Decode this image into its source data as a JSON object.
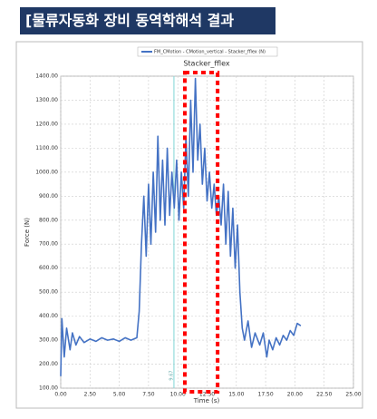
{
  "header": {
    "title": "[물류자동화 장비 동역학해석 결과"
  },
  "chart_data": {
    "type": "line",
    "title": "Stacker_fflex",
    "xlabel": "Time (s)",
    "ylabel": "Force (N)",
    "x": [
      0,
      0.1,
      0.3,
      0.5,
      0.8,
      1.0,
      1.3,
      1.6,
      2,
      2.5,
      3,
      3.5,
      4,
      4.5,
      5,
      5.5,
      6,
      6.5,
      6.7,
      6.9,
      7.1,
      7.3,
      7.5,
      7.7,
      7.9,
      8.1,
      8.3,
      8.5,
      8.7,
      8.9,
      9.1,
      9.3,
      9.5,
      9.7,
      9.9,
      10.1,
      10.3,
      10.5,
      10.7,
      10.9,
      11.1,
      11.3,
      11.5,
      11.7,
      11.9,
      12.1,
      12.3,
      12.5,
      12.7,
      12.9,
      13.1,
      13.3,
      13.5,
      13.7,
      13.9,
      14.1,
      14.3,
      14.5,
      14.7,
      14.9,
      15.1,
      15.3,
      15.5,
      15.7,
      16,
      16.3,
      16.6,
      17,
      17.3,
      17.6,
      17.8,
      18.1,
      18.4,
      18.7,
      19,
      19.3,
      19.6,
      19.9,
      20.2,
      20.5
    ],
    "series": [
      {
        "name": "FM_CMotion - CMotion_vertical - Stacker_fflex (N)",
        "color": "#4472c4",
        "values": [
          150,
          390,
          230,
          350,
          260,
          330,
          280,
          315,
          290,
          305,
          295,
          310,
          300,
          305,
          295,
          310,
          300,
          310,
          420,
          700,
          900,
          650,
          950,
          700,
          1000,
          750,
          1150,
          800,
          1050,
          780,
          1100,
          820,
          1000,
          850,
          1050,
          800,
          1000,
          850,
          1150,
          900,
          1300,
          1000,
          1390,
          1050,
          1200,
          950,
          1100,
          880,
          1000,
          850,
          950,
          820,
          900,
          780,
          950,
          700,
          920,
          650,
          850,
          600,
          780,
          500,
          350,
          300,
          380,
          270,
          330,
          280,
          330,
          230,
          300,
          260,
          310,
          280,
          320,
          300,
          340,
          320,
          370,
          360
        ]
      }
    ],
    "xlim": [
      0,
      25
    ],
    "xticks": [
      {
        "value": 0,
        "label": "0.00"
      },
      {
        "value": 2.5,
        "label": "2.50"
      },
      {
        "value": 5,
        "label": "5.00"
      },
      {
        "value": 7.5,
        "label": "7.50"
      },
      {
        "value": 10,
        "label": "10.00"
      },
      {
        "value": 12.5,
        "label": "12.50"
      },
      {
        "value": 15,
        "label": "15.00"
      },
      {
        "value": 17.5,
        "label": "17.50"
      },
      {
        "value": 20,
        "label": "20.00"
      },
      {
        "value": 22.5,
        "label": "22.50"
      },
      {
        "value": 25,
        "label": "25.00"
      }
    ],
    "ylim": [
      100,
      1400
    ],
    "yticks": [
      {
        "value": 100,
        "label": "100.00"
      },
      {
        "value": 200,
        "label": "200.00"
      },
      {
        "value": 300,
        "label": "300.00"
      },
      {
        "value": 400,
        "label": "400.00"
      },
      {
        "value": 500,
        "label": "500.00"
      },
      {
        "value": 600,
        "label": "600.00"
      },
      {
        "value": 700,
        "label": "700.00"
      },
      {
        "value": 800,
        "label": "800.00"
      },
      {
        "value": 900,
        "label": "900.00"
      },
      {
        "value": 1000,
        "label": "1000.00"
      },
      {
        "value": 1100,
        "label": "1100.00"
      },
      {
        "value": 1200,
        "label": "1200.00"
      },
      {
        "value": 1300,
        "label": "1300.00"
      },
      {
        "value": 1400,
        "label": "1400.00"
      }
    ],
    "grid": true,
    "marker_line": {
      "x": 9.67,
      "color": "#7fd4d4"
    },
    "highlight": {
      "xrange": [
        10.6,
        13.4
      ],
      "color": "#ff0000"
    }
  }
}
